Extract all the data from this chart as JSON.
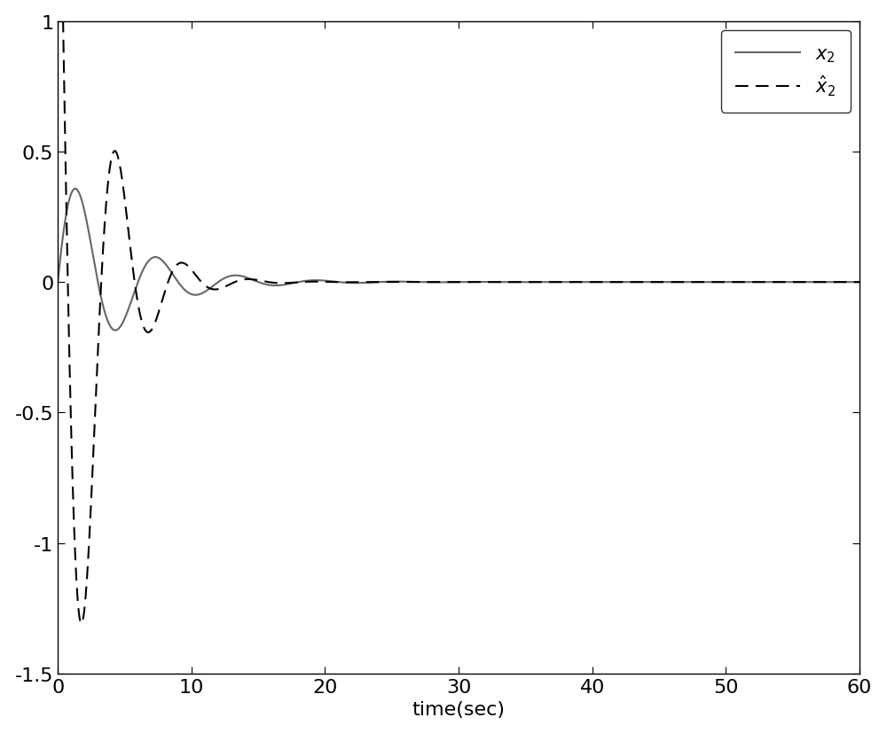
{
  "title": "",
  "xlabel": "time(sec)",
  "ylabel": "",
  "xlim": [
    0,
    60
  ],
  "ylim": [
    -1.5,
    1.0
  ],
  "yticks": [
    -1.5,
    -1.0,
    -0.5,
    0,
    0.5,
    1.0
  ],
  "xticks": [
    0,
    10,
    20,
    30,
    40,
    50,
    60
  ],
  "legend_x2": "$x_2$",
  "legend_xhat2": "$\\hat{x}_2$",
  "line_color_solid": "#666666",
  "line_color_dash": "#000000",
  "bg_color": "#ffffff",
  "fontsize": 16,
  "legend_fontsize": 15
}
